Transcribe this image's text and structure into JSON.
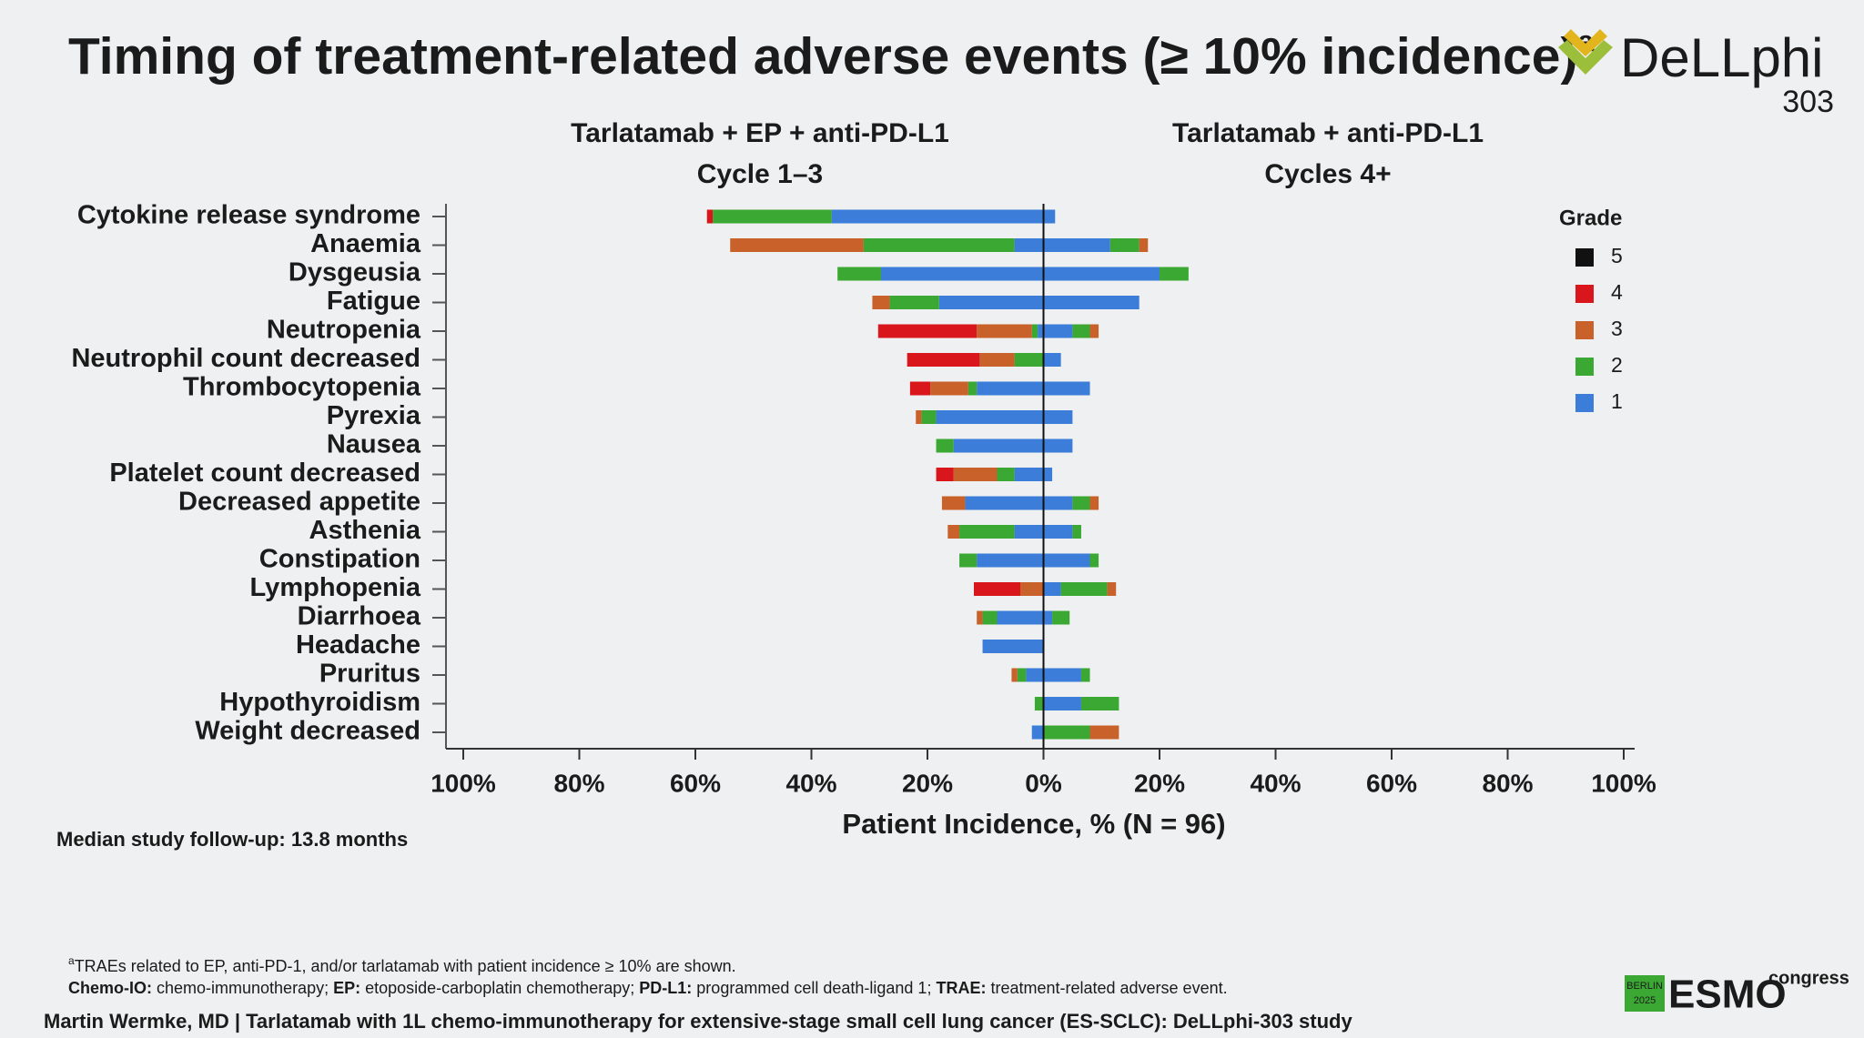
{
  "header": {
    "title": "Timing of treatment-related adverse events (≥ 10% incidence)",
    "title_superscript": "a",
    "logo": "DeLLphi",
    "logo_number": "303"
  },
  "chart_data": {
    "type": "diverging-bar",
    "panel_titles": [
      [
        "Tarlatamab + EP + anti-PD-L1",
        "Cycle 1–3"
      ],
      [
        "Tarlatamab + anti-PD-L1",
        "Cycles 4+"
      ]
    ],
    "x_label": "Patient Incidence, % (N = 96)",
    "legend_title": "Grade",
    "categories": [
      "Cytokine release syndrome",
      "Anaemia",
      "Dysgeusia",
      "Fatigue",
      "Neutropenia",
      "Neutrophil count decreased",
      "Thrombocytopenia",
      "Pyrexia",
      "Nausea",
      "Platelet count decreased",
      "Decreased appetite",
      "Asthenia",
      "Constipation",
      "Lymphopenia",
      "Diarrhoea",
      "Headache",
      "Pruritus",
      "Hypothyroidism",
      "Weight decreased"
    ],
    "series": [
      {
        "name": "5",
        "color": "#111111",
        "values_left": [
          0,
          0,
          0,
          0,
          0,
          0,
          0,
          0,
          0,
          0,
          0,
          0,
          0,
          0,
          0,
          0,
          0,
          0,
          0
        ],
        "values_right": [
          0,
          0,
          0,
          0,
          0,
          0,
          0,
          0,
          0,
          0,
          0,
          0,
          0,
          0,
          0,
          0,
          0,
          0,
          0
        ]
      },
      {
        "name": "4",
        "color": "#d9161c",
        "values_left": [
          -1,
          0,
          0,
          0,
          -17,
          -12.5,
          -3.5,
          0,
          0,
          -3,
          0,
          0,
          0,
          -8,
          0,
          0,
          0,
          0,
          0
        ],
        "values_right": [
          0,
          0,
          0,
          0,
          0,
          0,
          0,
          0,
          0,
          0,
          0,
          0,
          0,
          0,
          0,
          0,
          0,
          0,
          0
        ]
      },
      {
        "name": "3",
        "color": "#c8612a",
        "values_left": [
          0,
          -23,
          0,
          -3,
          -9.5,
          -6,
          -6.5,
          -1,
          0,
          -7.5,
          -4,
          -2,
          0,
          -4,
          -1,
          0,
          -1,
          0,
          0
        ],
        "values_right": [
          0,
          1.5,
          0,
          0,
          1.5,
          0,
          0,
          0,
          0,
          0,
          1.5,
          0,
          0,
          1.5,
          0,
          0,
          0,
          0,
          5
        ]
      },
      {
        "name": "2",
        "color": "#3aa832",
        "values_left": [
          -20.5,
          -26,
          -7.5,
          -8.5,
          -1,
          -5,
          -1.5,
          -2.5,
          -3,
          -3,
          0,
          -9.5,
          -3,
          0,
          -2.5,
          0,
          -1.5,
          -1.5,
          0
        ],
        "values_right": [
          0,
          5,
          5,
          0,
          3,
          0,
          0,
          0,
          0,
          0,
          3,
          1.5,
          1.5,
          8,
          3,
          0,
          1.5,
          6.5,
          8
        ]
      },
      {
        "name": "1",
        "color": "#3b7dd8",
        "values_left": [
          -36.5,
          -5,
          -28,
          -18,
          -1,
          0,
          -11.5,
          -18.5,
          -15.5,
          -5,
          -13.5,
          -5,
          -11.5,
          0,
          -8,
          -10.5,
          -3,
          0,
          -2
        ],
        "values_right": [
          2,
          11.5,
          20,
          16.5,
          5,
          3,
          8,
          5,
          5,
          1.5,
          5,
          5,
          8,
          3,
          1.5,
          0,
          6.5,
          6.5,
          0
        ]
      }
    ],
    "xlim": [
      -100,
      100
    ],
    "xticks": [
      {
        "value": -100,
        "label": "100%"
      },
      {
        "value": -80,
        "label": "80%"
      },
      {
        "value": -60,
        "label": "60%"
      },
      {
        "value": -40,
        "label": "40%"
      },
      {
        "value": -20,
        "label": "20%"
      },
      {
        "value": 0,
        "label": "0%"
      },
      {
        "value": 20,
        "label": "20%"
      },
      {
        "value": 40,
        "label": "40%"
      },
      {
        "value": 60,
        "label": "60%"
      },
      {
        "value": 80,
        "label": "80%"
      },
      {
        "value": 100,
        "label": "100%"
      }
    ]
  },
  "note": "Median study follow-up: 13.8 months",
  "footnotes": {
    "line1": {
      "superscript": "a",
      "text": "TRAEs related to EP, anti-PD-1, and/or tarlatamab with patient incidence ≥ 10% are shown."
    },
    "abbreviations": [
      {
        "term": "Chemo-IO:",
        "text": " chemo-immunotherapy; "
      },
      {
        "term": "EP:",
        "text": " etoposide-carboplatin chemotherapy; "
      },
      {
        "term": "PD-L1:",
        "text": " programmed cell death-ligand 1; "
      },
      {
        "term": "TRAE:",
        "text": " treatment-related adverse event."
      }
    ]
  },
  "footer": {
    "presenter": "Martin Wermke, MD | Tarlatamab with 1L chemo-immunotherapy for extensive-stage small cell lung cancer (ES-SCLC): DeLLphi-303 study",
    "congress_city": "BERLIN",
    "congress_year": "2025",
    "congress_name": "ESMO",
    "congress_word": "congress"
  }
}
